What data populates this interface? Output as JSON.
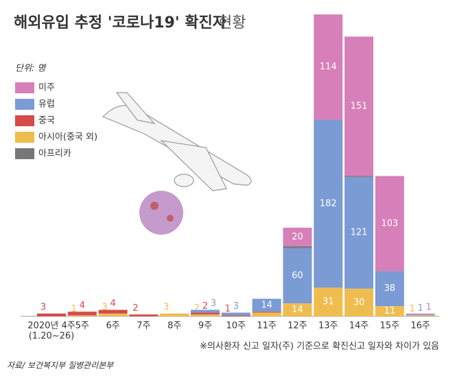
{
  "chart_data": {
    "type": "stacked-bar",
    "title": "해외유입 추정 '코로나19' 확진자",
    "title_suffix": "현황",
    "unit": "단위: 명",
    "categories": [
      "2020년 4주",
      "5주",
      "6주",
      "7주",
      "8주",
      "9주",
      "10주",
      "11주",
      "12주",
      "13주",
      "14주",
      "15주",
      "16주"
    ],
    "first_category_note": "(1.20~26)",
    "ylim": [
      0,
      330
    ],
    "series": [
      {
        "name": "아시아(중국 외)",
        "color": "#efbd4f",
        "values": [
          null,
          1,
          3,
          null,
          3,
          2,
          null,
          4,
          14,
          31,
          30,
          11,
          1
        ]
      },
      {
        "name": "중국",
        "color": "#d64a4a",
        "values": [
          3,
          4,
          4,
          2,
          null,
          2,
          1,
          1,
          null,
          null,
          null,
          null,
          null
        ]
      },
      {
        "name": "유럽",
        "color": "#7b9bd4",
        "values": [
          null,
          null,
          null,
          null,
          null,
          3,
          3,
          14,
          60,
          182,
          121,
          38,
          1
        ]
      },
      {
        "name": "아프리카",
        "color": "#777777",
        "values": [
          null,
          null,
          null,
          null,
          null,
          null,
          null,
          null,
          2,
          null,
          1,
          null,
          null
        ]
      },
      {
        "name": "미주",
        "color": "#d77fb8",
        "values": [
          null,
          null,
          null,
          null,
          null,
          null,
          null,
          null,
          20,
          114,
          151,
          103,
          1
        ]
      }
    ],
    "legend_order": [
      4,
      2,
      1,
      0,
      3
    ],
    "footnote": "※의사환자 신고 일자(주) 기준으로 확진신고 일자와 차이가 있음",
    "source": "자료/ 보건복지부 질병관리본부"
  }
}
